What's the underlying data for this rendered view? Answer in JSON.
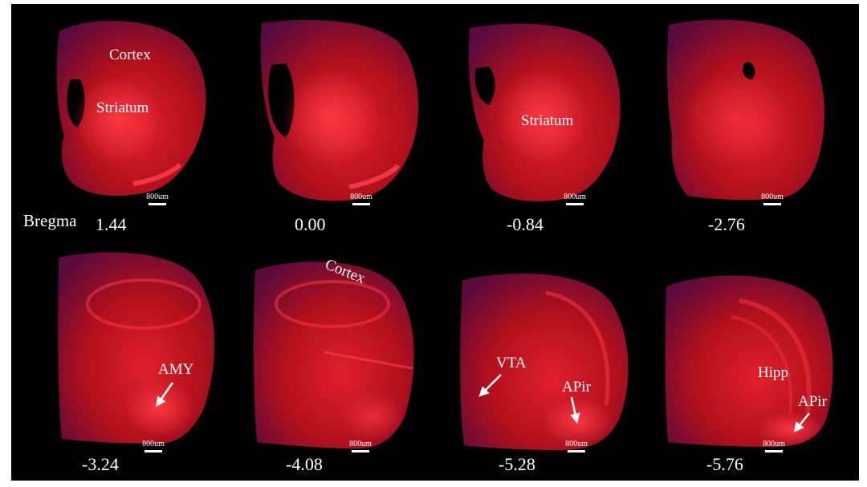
{
  "figure": {
    "bregma_label": "Bregma",
    "colors": {
      "background": "#000000",
      "tissue": "#c0101a",
      "tissue_bright": "#ff2a35",
      "tissue_dark": "#3a0a3a",
      "text": "#ffffff"
    },
    "sections": [
      {
        "bregma": "1.44",
        "scale": "800um",
        "regions": [
          "Cortex",
          "Striatum"
        ]
      },
      {
        "bregma": "0.00",
        "scale": "800um",
        "regions": []
      },
      {
        "bregma": "-0.84",
        "scale": "800um",
        "regions": [
          "Striatum"
        ]
      },
      {
        "bregma": "-2.76",
        "scale": "800um",
        "regions": []
      },
      {
        "bregma": "-3.24",
        "scale": "800um",
        "regions": [
          "AMY"
        ]
      },
      {
        "bregma": "-4.08",
        "scale": "800um",
        "regions": [
          "Cortex"
        ]
      },
      {
        "bregma": "-5.28",
        "scale": "800um",
        "regions": [
          "VTA",
          "APir"
        ]
      },
      {
        "bregma": "-5.76",
        "scale": "800um",
        "regions": [
          "Hipp",
          "APir"
        ]
      }
    ]
  }
}
